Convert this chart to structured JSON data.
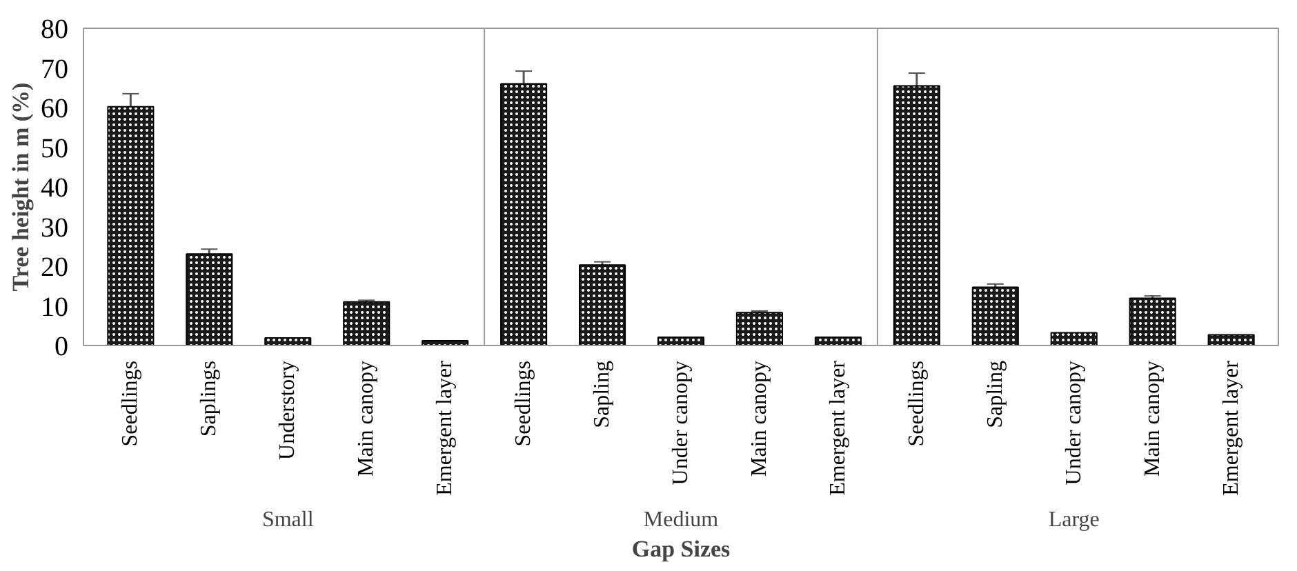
{
  "chart_data": {
    "type": "bar",
    "xlabel": "Gap Sizes",
    "ylabel": "Tree height in m (%)",
    "categories": [
      "Seedlings",
      "Saplings",
      "Understory",
      "Main canopy",
      "Emergent layer",
      "Seedlings",
      "Sapling",
      "Under canopy",
      "Main canopy",
      "Emergent layer",
      "Seedlings",
      "Sapling",
      "Under canopy",
      "Main canopy",
      "Emergent layer"
    ],
    "values": [
      60.2,
      23.1,
      1.9,
      11.0,
      1.2,
      66.0,
      20.3,
      2.1,
      8.3,
      2.1,
      65.5,
      14.7,
      3.2,
      11.9,
      2.7
    ],
    "errors": [
      3.3,
      1.2,
      null,
      0.4,
      null,
      3.2,
      0.8,
      null,
      0.4,
      null,
      3.2,
      0.8,
      null,
      0.6,
      null
    ],
    "color": "#1a1a1a",
    "annotations": [
      "Small",
      "Medium",
      "Large"
    ],
    "ylim": [
      0,
      80
    ],
    "yticks": [
      0,
      10,
      20,
      30,
      40,
      50,
      60,
      70,
      80
    ],
    "grid": false
  }
}
